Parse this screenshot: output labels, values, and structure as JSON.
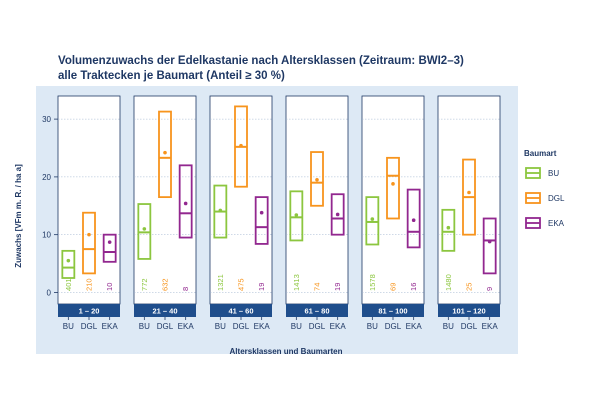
{
  "colors": {
    "BU": "#8cc63f",
    "DGL": "#f7941d",
    "EKA": "#92278f",
    "strip": "#1f4e8c",
    "panel_bg": "#ffffff",
    "plot_bg": "#dde9f5",
    "text": "#1f3864",
    "grid": "#9fb4cf"
  },
  "chart_data": {
    "type": "box",
    "title_line1": "Volumenzuwachs der Edelkastanie nach Altersklassen (Zeitraum: BWI2–3)",
    "title_line2": "alle Traktecken je Baumart (Anteil ≥ 30 %)",
    "xlabel": "Altersklassen und Baumarten",
    "ylabel": "Zuwachs [VFm m. R. / ha a]",
    "ylim": [
      -2,
      34
    ],
    "yticks": [
      0,
      10,
      20,
      30
    ],
    "legend_title": "Baumart",
    "legend_position": "right",
    "species": [
      "BU",
      "DGL",
      "EKA"
    ],
    "panels": [
      {
        "label": "1 – 20",
        "boxes": [
          {
            "species": "BU",
            "lower": 2.5,
            "median": 4.3,
            "upper": 7.2,
            "mean": 5.5,
            "n": "401"
          },
          {
            "species": "DGL",
            "lower": 3.3,
            "median": 7.5,
            "upper": 13.8,
            "mean": 10.0,
            "n": "210"
          },
          {
            "species": "EKA",
            "lower": 5.3,
            "median": 7.0,
            "upper": 10.0,
            "mean": 8.7,
            "n": "10"
          }
        ]
      },
      {
        "label": "21 – 40",
        "boxes": [
          {
            "species": "BU",
            "lower": 5.8,
            "median": 10.4,
            "upper": 15.3,
            "mean": 11.0,
            "n": "772"
          },
          {
            "species": "DGL",
            "lower": 16.5,
            "median": 23.3,
            "upper": 31.3,
            "mean": 24.2,
            "n": "632"
          },
          {
            "species": "EKA",
            "lower": 9.5,
            "median": 13.7,
            "upper": 22.0,
            "mean": 15.4,
            "n": "8"
          }
        ]
      },
      {
        "label": "41 – 60",
        "boxes": [
          {
            "species": "BU",
            "lower": 9.5,
            "median": 14.0,
            "upper": 18.5,
            "mean": 14.2,
            "n": "1321"
          },
          {
            "species": "DGL",
            "lower": 18.3,
            "median": 25.2,
            "upper": 32.2,
            "mean": 25.4,
            "n": "475"
          },
          {
            "species": "EKA",
            "lower": 8.4,
            "median": 11.3,
            "upper": 16.5,
            "mean": 13.8,
            "n": "19"
          }
        ]
      },
      {
        "label": "61 – 80",
        "boxes": [
          {
            "species": "BU",
            "lower": 9.0,
            "median": 13.0,
            "upper": 17.5,
            "mean": 13.4,
            "n": "1413"
          },
          {
            "species": "DGL",
            "lower": 15.0,
            "median": 19.0,
            "upper": 24.3,
            "mean": 19.5,
            "n": "74"
          },
          {
            "species": "EKA",
            "lower": 10.0,
            "median": 12.8,
            "upper": 17.0,
            "mean": 13.5,
            "n": "19"
          }
        ]
      },
      {
        "label": "81 – 100",
        "boxes": [
          {
            "species": "BU",
            "lower": 8.3,
            "median": 12.2,
            "upper": 16.5,
            "mean": 12.7,
            "n": "1578"
          },
          {
            "species": "DGL",
            "lower": 12.8,
            "median": 20.2,
            "upper": 23.3,
            "mean": 18.8,
            "n": "69"
          },
          {
            "species": "EKA",
            "lower": 7.8,
            "median": 10.5,
            "upper": 17.8,
            "mean": 12.5,
            "n": "16"
          }
        ]
      },
      {
        "label": "101 – 120",
        "boxes": [
          {
            "species": "BU",
            "lower": 7.2,
            "median": 10.5,
            "upper": 14.3,
            "mean": 11.2,
            "n": "1480"
          },
          {
            "species": "DGL",
            "lower": 10.0,
            "median": 16.5,
            "upper": 23.0,
            "mean": 17.3,
            "n": "25"
          },
          {
            "species": "EKA",
            "lower": 3.3,
            "median": 9.0,
            "upper": 12.8,
            "mean": 8.8,
            "n": "9"
          }
        ]
      }
    ]
  }
}
